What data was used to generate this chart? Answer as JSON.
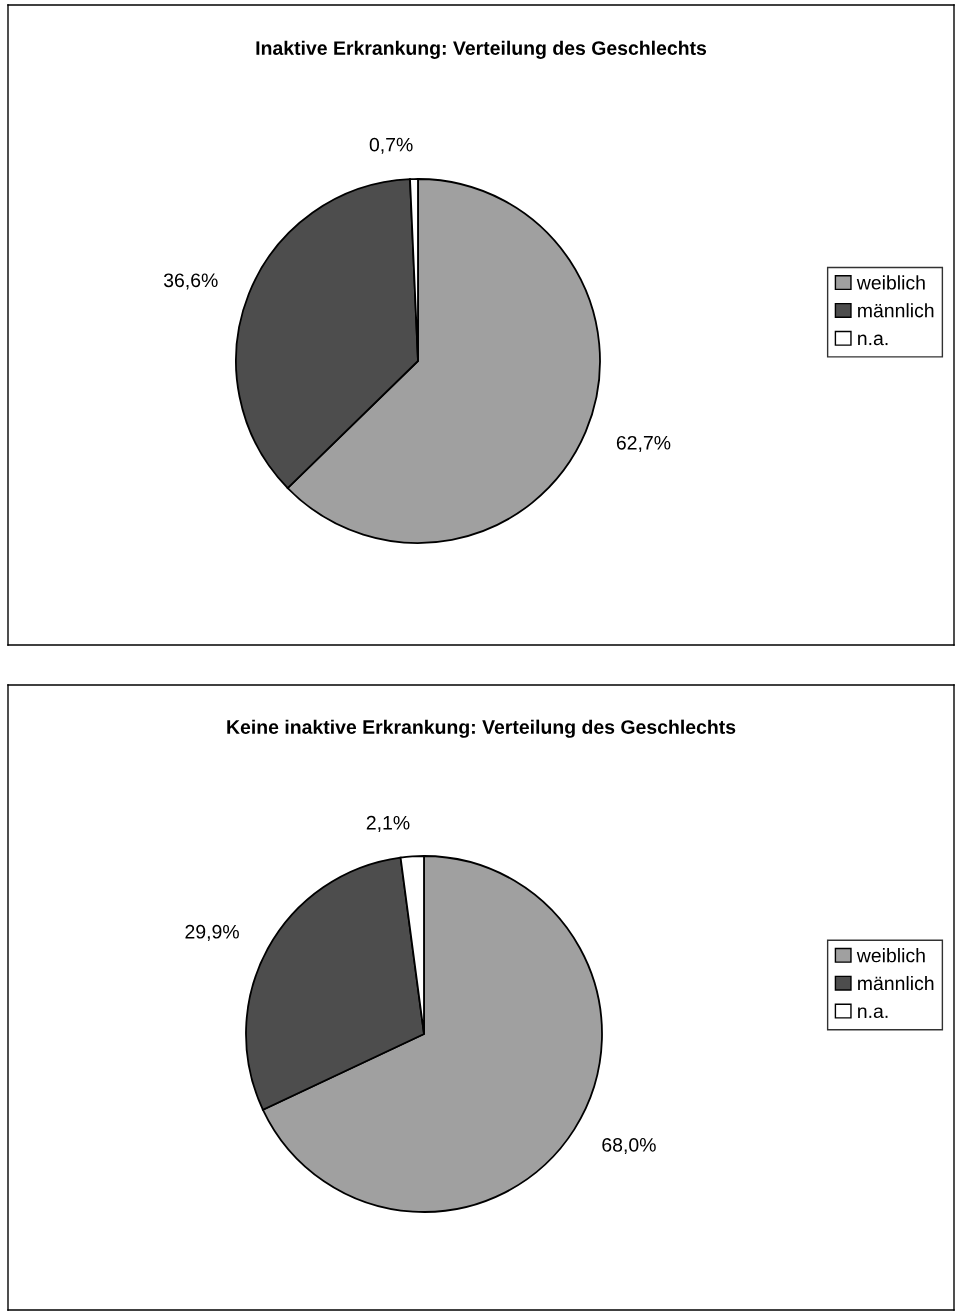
{
  "chart_data": [
    {
      "type": "pie",
      "title": "Inaktive Erkrankung: Verteilung des Geschlechts",
      "categories": [
        "weiblich",
        "männlich",
        "n.a."
      ],
      "values": [
        62.7,
        36.6,
        0.7
      ],
      "colors": [
        "#a0a0a0",
        "#4d4d4d",
        "#ffffff"
      ],
      "value_labels": [
        "62,7%",
        "36,6%",
        "0,7%"
      ],
      "legend": "right"
    },
    {
      "type": "pie",
      "title": "Keine inaktive Erkrankung: Verteilung des Geschlechts",
      "categories": [
        "weiblich",
        "männlich",
        "n.a."
      ],
      "values": [
        68.0,
        29.9,
        2.1
      ],
      "colors": [
        "#a0a0a0",
        "#4d4d4d",
        "#ffffff"
      ],
      "value_labels": [
        "68,0%",
        "29,9%",
        "2,1%"
      ],
      "legend": "right"
    }
  ]
}
